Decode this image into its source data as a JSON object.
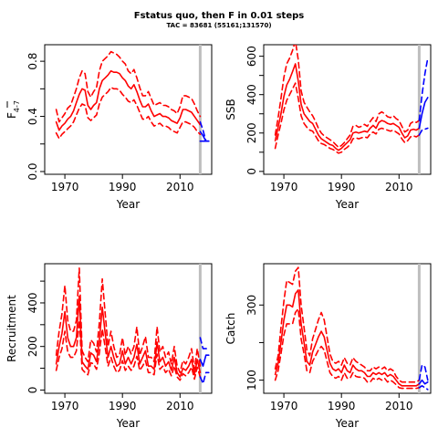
{
  "title": "Fstatus quo, then F in 0.01 steps",
  "subtitle": "TAC = 83681 (55161;131570)",
  "colors": {
    "historic": "#ff0000",
    "projection": "#0000ff",
    "divider": "#bebebe",
    "axis": "#000000"
  },
  "chart_data": [
    {
      "type": "line",
      "panel": "Fbar",
      "xlabel": "Year",
      "ylabel": "F",
      "ylabel_sub": "4-7",
      "xlim": [
        1963,
        2021
      ],
      "ylim": [
        -0.02,
        0.92
      ],
      "xticks": [
        1970,
        1990,
        2010
      ],
      "yticks": [
        0,
        0.2,
        0.4,
        0.6,
        0.8
      ],
      "yticklabels": [
        "0.0",
        "",
        "0.4",
        "",
        "0.8"
      ],
      "x": [
        1967,
        1968,
        1969,
        1970,
        1971,
        1972,
        1973,
        1974,
        1975,
        1976,
        1977,
        1978,
        1979,
        1980,
        1981,
        1982,
        1983,
        1984,
        1985,
        1986,
        1987,
        1988,
        1989,
        1990,
        1991,
        1992,
        1993,
        1994,
        1995,
        1996,
        1997,
        1998,
        1999,
        2000,
        2001,
        2002,
        2003,
        2004,
        2005,
        2006,
        2007,
        2008,
        2009,
        2010,
        2011,
        2012,
        2013,
        2014,
        2015,
        2016,
        2017
      ],
      "series": [
        {
          "role": "median",
          "values": [
            0.36,
            0.3,
            0.33,
            0.35,
            0.38,
            0.4,
            0.44,
            0.5,
            0.56,
            0.6,
            0.59,
            0.48,
            0.45,
            0.48,
            0.5,
            0.6,
            0.66,
            0.68,
            0.7,
            0.73,
            0.72,
            0.72,
            0.71,
            0.68,
            0.66,
            0.62,
            0.6,
            0.63,
            0.58,
            0.52,
            0.47,
            0.47,
            0.49,
            0.44,
            0.4,
            0.41,
            0.42,
            0.4,
            0.4,
            0.39,
            0.37,
            0.36,
            0.35,
            0.39,
            0.45,
            0.45,
            0.44,
            0.43,
            0.4,
            0.37,
            0.34
          ]
        },
        {
          "role": "upper",
          "values": [
            0.45,
            0.36,
            0.39,
            0.42,
            0.46,
            0.48,
            0.54,
            0.6,
            0.68,
            0.73,
            0.71,
            0.58,
            0.54,
            0.58,
            0.61,
            0.73,
            0.8,
            0.82,
            0.84,
            0.87,
            0.86,
            0.85,
            0.83,
            0.8,
            0.78,
            0.73,
            0.71,
            0.74,
            0.68,
            0.61,
            0.55,
            0.55,
            0.58,
            0.53,
            0.48,
            0.49,
            0.5,
            0.48,
            0.48,
            0.47,
            0.45,
            0.44,
            0.42,
            0.47,
            0.55,
            0.55,
            0.54,
            0.53,
            0.49,
            0.44,
            0.4
          ]
        },
        {
          "role": "lower",
          "values": [
            0.28,
            0.24,
            0.27,
            0.29,
            0.31,
            0.33,
            0.36,
            0.41,
            0.46,
            0.49,
            0.48,
            0.39,
            0.37,
            0.39,
            0.41,
            0.49,
            0.54,
            0.56,
            0.58,
            0.61,
            0.6,
            0.6,
            0.59,
            0.56,
            0.54,
            0.51,
            0.5,
            0.52,
            0.48,
            0.43,
            0.38,
            0.38,
            0.4,
            0.36,
            0.33,
            0.34,
            0.35,
            0.33,
            0.33,
            0.32,
            0.3,
            0.29,
            0.28,
            0.32,
            0.36,
            0.36,
            0.35,
            0.34,
            0.32,
            0.29,
            0.27
          ]
        }
      ],
      "projection_x": [
        2017,
        2018,
        2019,
        2020
      ],
      "projection_series": [
        {
          "role": "median",
          "values": [
            0.29,
            0.26,
            0.22,
            0.22
          ]
        },
        {
          "role": "upper",
          "values": [
            0.36,
            0.3,
            0.22,
            0.22
          ]
        },
        {
          "role": "lower",
          "values": [
            0.22,
            0.22,
            0.22,
            0.22
          ]
        }
      ],
      "divider_x": 2017
    },
    {
      "type": "line",
      "panel": "SSB",
      "xlabel": "Year",
      "ylabel": "SSB",
      "xlim": [
        1963,
        2021
      ],
      "ylim": [
        -15,
        660
      ],
      "xticks": [
        1970,
        1990,
        2010
      ],
      "yticks": [
        0,
        100,
        200,
        300,
        400,
        500,
        600
      ],
      "yticklabels": [
        "0",
        "",
        "200",
        "",
        "400",
        "",
        "600"
      ],
      "x": [
        1967,
        1968,
        1969,
        1970,
        1971,
        1972,
        1973,
        1974,
        1975,
        1976,
        1977,
        1978,
        1979,
        1980,
        1981,
        1982,
        1983,
        1984,
        1985,
        1986,
        1987,
        1988,
        1989,
        1990,
        1991,
        1992,
        1993,
        1994,
        1995,
        1996,
        1997,
        1998,
        1999,
        2000,
        2001,
        2002,
        2003,
        2004,
        2005,
        2006,
        2007,
        2008,
        2009,
        2010,
        2011,
        2012,
        2013,
        2014,
        2015,
        2016,
        2017
      ],
      "series": [
        {
          "role": "median",
          "values": [
            160,
            230,
            300,
            390,
            450,
            480,
            520,
            560,
            470,
            350,
            300,
            280,
            260,
            250,
            220,
            190,
            170,
            160,
            150,
            140,
            135,
            120,
            110,
            120,
            135,
            150,
            165,
            200,
            205,
            200,
            205,
            210,
            205,
            225,
            240,
            225,
            255,
            265,
            260,
            250,
            245,
            250,
            240,
            230,
            200,
            175,
            185,
            215,
            220,
            215,
            225
          ]
        },
        {
          "role": "upper",
          "values": [
            190,
            280,
            380,
            490,
            560,
            590,
            630,
            680,
            580,
            420,
            360,
            335,
            310,
            290,
            260,
            225,
            200,
            185,
            175,
            165,
            155,
            140,
            125,
            135,
            150,
            170,
            190,
            235,
            240,
            230,
            235,
            245,
            235,
            260,
            280,
            260,
            300,
            310,
            300,
            285,
            280,
            290,
            275,
            265,
            235,
            205,
            215,
            250,
            260,
            255,
            265
          ]
        },
        {
          "role": "lower",
          "values": [
            120,
            190,
            250,
            320,
            370,
            400,
            430,
            460,
            380,
            290,
            250,
            230,
            215,
            210,
            185,
            160,
            145,
            140,
            130,
            120,
            115,
            105,
            95,
            100,
            115,
            125,
            140,
            170,
            175,
            170,
            175,
            180,
            175,
            195,
            205,
            195,
            220,
            225,
            220,
            215,
            210,
            215,
            205,
            195,
            170,
            150,
            160,
            180,
            185,
            180,
            190
          ]
        }
      ],
      "projection_x": [
        2017,
        2018,
        2019,
        2020
      ],
      "projection_series": [
        {
          "role": "median",
          "values": [
            225,
            300,
            360,
            385
          ]
        },
        {
          "role": "upper",
          "values": [
            265,
            400,
            510,
            590
          ]
        },
        {
          "role": "lower",
          "values": [
            190,
            215,
            220,
            225
          ]
        }
      ],
      "divider_x": 2017
    },
    {
      "type": "line",
      "panel": "Recruitment",
      "xlabel": "Year",
      "ylabel": "Recruitment",
      "xlim": [
        1963,
        2021
      ],
      "ylim": [
        -15,
        580
      ],
      "xticks": [
        1970,
        1990,
        2010
      ],
      "yticks": [
        0,
        100,
        200,
        300,
        400,
        500
      ],
      "yticklabels": [
        "0",
        "",
        "200",
        "",
        "400",
        ""
      ],
      "x": [
        1967,
        1968,
        1969,
        1970,
        1971,
        1972,
        1973,
        1974,
        1975,
        1976,
        1977,
        1978,
        1979,
        1980,
        1981,
        1982,
        1983,
        1984,
        1985,
        1986,
        1987,
        1988,
        1989,
        1990,
        1991,
        1992,
        1993,
        1994,
        1995,
        1996,
        1997,
        1998,
        1999,
        2000,
        2001,
        2002,
        2003,
        2004,
        2005,
        2006,
        2007,
        2008,
        2009,
        2010,
        2011,
        2012,
        2013,
        2014,
        2015,
        2016,
        2017
      ],
      "series": [
        {
          "role": "median",
          "values": [
            120,
            200,
            260,
            360,
            240,
            200,
            200,
            240,
            430,
            130,
            110,
            95,
            170,
            160,
            130,
            230,
            380,
            260,
            150,
            200,
            150,
            110,
            120,
            180,
            120,
            150,
            120,
            150,
            210,
            120,
            150,
            180,
            110,
            110,
            95,
            220,
            130,
            150,
            110,
            130,
            90,
            150,
            80,
            60,
            100,
            90,
            110,
            140,
            70,
            140,
            80
          ]
        },
        {
          "role": "upper",
          "values": [
            160,
            270,
            350,
            480,
            320,
            270,
            270,
            320,
            560,
            180,
            150,
            130,
            230,
            215,
            175,
            310,
            510,
            350,
            200,
            270,
            200,
            150,
            160,
            240,
            160,
            200,
            165,
            200,
            290,
            160,
            200,
            245,
            150,
            150,
            130,
            290,
            175,
            200,
            150,
            175,
            120,
            200,
            110,
            80,
            135,
            120,
            150,
            190,
            95,
            190,
            110
          ]
        },
        {
          "role": "lower",
          "values": [
            90,
            150,
            190,
            270,
            175,
            150,
            150,
            180,
            320,
            95,
            80,
            70,
            125,
            120,
            95,
            170,
            280,
            195,
            110,
            150,
            110,
            80,
            90,
            135,
            90,
            110,
            90,
            110,
            155,
            90,
            110,
            135,
            80,
            80,
            70,
            165,
            95,
            110,
            80,
            95,
            65,
            110,
            60,
            45,
            75,
            65,
            80,
            105,
            50,
            105,
            60
          ]
        }
      ],
      "projection_x": [
        2017,
        2018,
        2019,
        2020
      ],
      "projection_series": [
        {
          "role": "median",
          "values": [
            140,
            110,
            160,
            160
          ]
        },
        {
          "role": "upper",
          "values": [
            240,
            190,
            190,
            190
          ]
        },
        {
          "role": "lower",
          "values": [
            60,
            30,
            80,
            80
          ]
        }
      ],
      "divider_x": 2017
    },
    {
      "type": "line",
      "panel": "Catch",
      "xlabel": "Year",
      "ylabel": "Catch",
      "xlim": [
        1963,
        2021
      ],
      "ylim": [
        65,
        410
      ],
      "xticks": [
        1970,
        1990,
        2010
      ],
      "yticks": [
        100,
        200,
        300
      ],
      "yticklabels": [
        "100",
        "",
        "300"
      ],
      "x": [
        1967,
        1968,
        1969,
        1970,
        1971,
        1972,
        1973,
        1974,
        1975,
        1976,
        1977,
        1978,
        1979,
        1980,
        1981,
        1982,
        1983,
        1984,
        1985,
        1986,
        1987,
        1988,
        1989,
        1990,
        1991,
        1992,
        1993,
        1994,
        1995,
        1996,
        1997,
        1998,
        1999,
        2000,
        2001,
        2002,
        2003,
        2004,
        2005,
        2006,
        2007,
        2008,
        2009,
        2010,
        2011,
        2012,
        2013,
        2014,
        2015,
        2016,
        2017
      ],
      "series": [
        {
          "role": "median",
          "values": [
            115,
            145,
            200,
            260,
            300,
            300,
            295,
            330,
            340,
            250,
            200,
            150,
            140,
            175,
            195,
            215,
            230,
            215,
            180,
            145,
            130,
            125,
            130,
            120,
            140,
            125,
            120,
            140,
            130,
            125,
            125,
            120,
            110,
            110,
            120,
            115,
            120,
            115,
            120,
            110,
            115,
            110,
            100,
            90,
            85,
            85,
            85,
            85,
            85,
            85,
            90
          ]
        },
        {
          "role": "upper",
          "values": [
            130,
            165,
            240,
            310,
            365,
            360,
            355,
            390,
            400,
            300,
            240,
            180,
            165,
            210,
            235,
            260,
            280,
            260,
            215,
            170,
            150,
            145,
            150,
            140,
            160,
            145,
            140,
            160,
            150,
            145,
            140,
            135,
            125,
            125,
            135,
            130,
            135,
            130,
            135,
            125,
            130,
            125,
            110,
            100,
            95,
            95,
            95,
            95,
            95,
            95,
            100
          ]
        },
        {
          "role": "lower",
          "values": [
            100,
            125,
            170,
            220,
            250,
            250,
            250,
            280,
            290,
            210,
            170,
            125,
            120,
            150,
            165,
            180,
            190,
            180,
            150,
            120,
            110,
            105,
            110,
            100,
            120,
            105,
            105,
            120,
            110,
            108,
            108,
            105,
            95,
            95,
            105,
            100,
            105,
            100,
            105,
            95,
            100,
            95,
            88,
            80,
            78,
            78,
            78,
            78,
            78,
            78,
            80
          ]
        }
      ],
      "projection_x": [
        2017,
        2018,
        2019,
        2020
      ],
      "projection_series": [
        {
          "role": "median",
          "values": [
            90,
            100,
            90,
            95
          ]
        },
        {
          "role": "upper",
          "values": [
            100,
            140,
            135,
            100
          ]
        },
        {
          "role": "lower",
          "values": [
            80,
            85,
            80,
            75
          ]
        }
      ],
      "divider_x": 2017
    }
  ]
}
